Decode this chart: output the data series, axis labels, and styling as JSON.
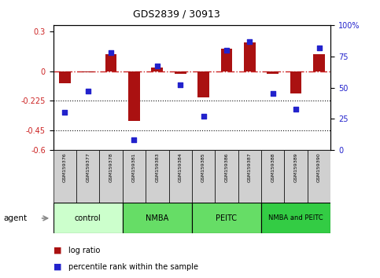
{
  "title": "GDS2839 / 30913",
  "samples": [
    "GSM159376",
    "GSM159377",
    "GSM159378",
    "GSM159381",
    "GSM159383",
    "GSM159384",
    "GSM159385",
    "GSM159386",
    "GSM159387",
    "GSM159388",
    "GSM159389",
    "GSM159390"
  ],
  "log_ratio": [
    -0.09,
    -0.01,
    0.13,
    -0.38,
    0.03,
    -0.02,
    -0.2,
    0.17,
    0.22,
    -0.02,
    -0.17,
    0.13
  ],
  "percentile_rank": [
    30,
    47,
    78,
    8,
    67,
    52,
    27,
    80,
    87,
    45,
    33,
    82
  ],
  "ylim_left": [
    -0.6,
    0.35
  ],
  "ylim_right": [
    0,
    100
  ],
  "yticks_left": [
    0.3,
    0,
    -0.225,
    -0.45,
    -0.6
  ],
  "yticks_right": [
    100,
    75,
    50,
    25,
    0
  ],
  "bar_color": "#aa1111",
  "dot_color": "#2222cc",
  "hline_color": "#cc2222",
  "dotted_line_color": "#111111",
  "bg_color": "#ffffff",
  "plot_bg": "#ffffff",
  "tick_label_color_left": "#cc2222",
  "tick_label_color_right": "#2222cc",
  "group_colors": [
    "#ccffcc",
    "#66dd66",
    "#66dd66",
    "#33cc44"
  ],
  "group_labels": [
    "control",
    "NMBA",
    "PEITC",
    "NMBA and PEITC"
  ],
  "group_ranges": [
    [
      0,
      3
    ],
    [
      3,
      6
    ],
    [
      6,
      9
    ],
    [
      9,
      12
    ]
  ],
  "sample_box_color": "#d0d0d0",
  "legend_bar_label": "log ratio",
  "legend_dot_label": "percentile rank within the sample",
  "agent_label": "agent"
}
